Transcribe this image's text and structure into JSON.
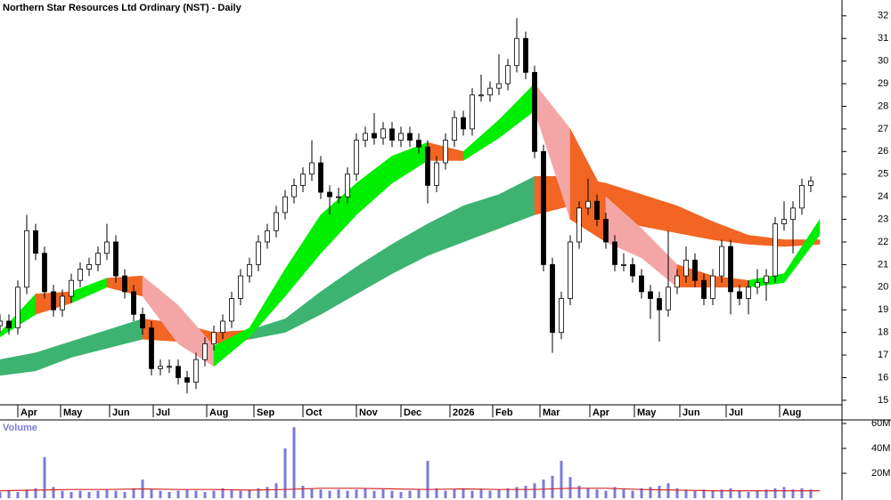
{
  "chart_data": [
    {
      "type": "candlestick",
      "title": "Northern Star Resources Ltd Ordinary (NST) - Daily",
      "x": [
        0,
        4,
        8,
        12,
        16,
        20,
        24,
        28,
        32,
        36,
        40,
        44,
        48,
        52,
        56,
        60,
        64,
        68,
        72,
        76,
        80,
        84,
        88,
        92,
        96,
        100,
        104,
        108,
        112,
        116,
        120,
        124,
        128,
        132,
        136,
        140,
        144,
        148,
        152,
        156,
        160,
        164,
        168,
        172,
        176,
        180,
        184,
        188,
        192,
        196,
        200,
        204,
        208,
        212,
        216,
        220,
        224,
        228,
        232,
        236,
        240,
        244,
        248,
        252,
        256,
        260,
        264,
        268,
        272,
        276,
        280,
        284,
        288,
        292,
        296,
        300,
        304,
        308,
        312,
        316,
        320,
        324,
        328,
        332,
        336,
        340,
        344,
        348,
        352,
        356,
        360,
        364
      ],
      "open": [
        18.3,
        18.5,
        18.2,
        20,
        22.5,
        21.5,
        19.8,
        19,
        19.6,
        20.3,
        20.8,
        21,
        21.5,
        22,
        20.5,
        19.8,
        18.8,
        18.2,
        16.4,
        16.5,
        16.5,
        16,
        15.8,
        16.8,
        17.5,
        18,
        18.5,
        19.5,
        20.5,
        21,
        22,
        22.5,
        23.3,
        24,
        24.5,
        25,
        25.5,
        24.2,
        24,
        24,
        25,
        26.5,
        26.8,
        26.6,
        27,
        26.5,
        26.8,
        26.5,
        26.2,
        24.5,
        25.5,
        26.5,
        27.5,
        27,
        28.5,
        28.5,
        28.8,
        29,
        29.8,
        31,
        29.5,
        26,
        21,
        18,
        19.5,
        22,
        23.5,
        23.8,
        23,
        22,
        21,
        21,
        20.5,
        19.8,
        19.5,
        19,
        20,
        20.5,
        21.2,
        20.3,
        19.5,
        20.5,
        21.8,
        19.8,
        19.5,
        20,
        20.2,
        20.5,
        22.8,
        23,
        23.5,
        24.5
      ],
      "high": [
        18.8,
        18.8,
        20.3,
        23.2,
        22.8,
        21.8,
        20.1,
        19.9,
        20.6,
        21.1,
        21.3,
        21.8,
        22.8,
        22.3,
        20.8,
        20.1,
        19.1,
        18.5,
        16.8,
        16.8,
        16.8,
        16.3,
        17.1,
        17.8,
        18.3,
        18.8,
        19.8,
        20.8,
        21.3,
        22.3,
        22.8,
        23.6,
        24.3,
        24.8,
        25.3,
        26.5,
        25.8,
        24.5,
        24.4,
        25.3,
        26.8,
        27.1,
        27.7,
        27.3,
        27.3,
        27.1,
        27.1,
        26.8,
        26.5,
        25.8,
        26.8,
        27.8,
        27.8,
        28.8,
        29.4,
        29.1,
        30.3,
        30.1,
        31.9,
        31.3,
        29.8,
        26.3,
        21.3,
        19.8,
        22.3,
        23.8,
        24.8,
        24.1,
        23.3,
        22.3,
        21.5,
        21.3,
        20.8,
        20.1,
        19.8,
        22.5,
        20.8,
        21.8,
        21.5,
        20.6,
        20.8,
        22.1,
        22.1,
        20.1,
        20.3,
        20.8,
        20.8,
        23.1,
        23.8,
        23.8,
        24.8,
        24.9
      ],
      "low": [
        18.0,
        17.9,
        17.9,
        19.7,
        21.2,
        19.5,
        18.7,
        18.7,
        19.3,
        20,
        20.5,
        20.7,
        21.2,
        20.2,
        19.5,
        18.5,
        17.9,
        16.1,
        16.1,
        16.2,
        15.7,
        15.3,
        15.5,
        16.5,
        17.2,
        17.7,
        18.2,
        19.2,
        20.2,
        20.7,
        21.7,
        22.2,
        23,
        23.7,
        24.2,
        24.7,
        23.9,
        23.2,
        23.7,
        23.7,
        24.7,
        26.2,
        26.3,
        26.3,
        26.2,
        26.2,
        26.2,
        25.9,
        23.7,
        24.2,
        25.2,
        26.2,
        26.7,
        26.7,
        28.2,
        28.2,
        28.5,
        28.7,
        29.5,
        29.2,
        25.7,
        20.7,
        17.1,
        17.7,
        19.2,
        21.7,
        23.2,
        22.7,
        21.7,
        20.7,
        20.7,
        20.2,
        19.5,
        18.6,
        17.6,
        18.7,
        19.7,
        20.2,
        20,
        19.2,
        19.2,
        20.2,
        18.8,
        19.2,
        18.8,
        19.7,
        19.4,
        20.2,
        22.5,
        21.5,
        23.2,
        24.2
      ],
      "close": [
        18.5,
        18.2,
        20,
        22.5,
        21.5,
        19.8,
        19,
        19.6,
        20.3,
        20.8,
        21,
        21.5,
        22,
        20.5,
        19.8,
        18.8,
        18.2,
        16.4,
        16.5,
        16.5,
        16,
        15.8,
        16.8,
        17.5,
        18,
        18.5,
        19.5,
        20.5,
        21,
        22,
        22.5,
        23.3,
        24,
        24.5,
        25,
        25.5,
        24.2,
        24,
        24,
        25,
        26.5,
        26.8,
        26.6,
        27,
        26.5,
        26.8,
        26.5,
        26.2,
        24.5,
        25.5,
        26.5,
        27.5,
        27,
        28.5,
        28.5,
        28.8,
        29,
        29.8,
        31,
        29.5,
        26,
        21,
        18,
        19.5,
        22,
        23.5,
        23.8,
        23,
        22,
        21,
        21,
        20.5,
        19.8,
        19.5,
        19,
        20,
        20.5,
        21.2,
        20.3,
        19.5,
        20.5,
        21.8,
        19.8,
        19.5,
        20,
        20.2,
        20.5,
        22.8,
        23,
        23.5,
        24.5,
        24.7
      ],
      "ribbons": [
        {
          "x": [
            0,
            16,
            32,
            48,
            64,
            80,
            96,
            112,
            128,
            144,
            160,
            176,
            192,
            208,
            224,
            240,
            256,
            272,
            288,
            304,
            320,
            336,
            352,
            368
          ],
          "upper": [
            16.8,
            17.1,
            17.6,
            18.1,
            18.6,
            18.4,
            18.0,
            18.1,
            18.6,
            19.8,
            20.9,
            21.9,
            22.8,
            23.6,
            24.1,
            24.9,
            24.9,
            24.6,
            24.1,
            23.6,
            22.9,
            22.3,
            22.1,
            22.1
          ],
          "lower": [
            16.1,
            16.3,
            16.9,
            17.3,
            17.7,
            17.6,
            17.5,
            17.7,
            18.0,
            18.8,
            19.7,
            20.6,
            21.4,
            22.0,
            22.6,
            23.2,
            23.6,
            23.2,
            22.7,
            22.4,
            22.1,
            21.9,
            21.8,
            21.9
          ],
          "colors": [
            "#3cb371",
            "#3cb371",
            "#3cb371",
            "#3cb371",
            "#3cb371",
            "#f26522",
            "#f26522",
            "#f26522",
            "#3cb371",
            "#3cb371",
            "#3cb371",
            "#3cb371",
            "#3cb371",
            "#3cb371",
            "#3cb371",
            "#3cb371",
            "#f26522",
            "#f26522",
            "#f26522",
            "#f26522",
            "#f26522",
            "#f26522",
            "#f26522",
            "#f26522"
          ]
        },
        {
          "x": [
            0,
            16,
            32,
            48,
            64,
            80,
            96,
            112,
            128,
            144,
            160,
            176,
            192,
            208,
            224,
            240,
            256,
            272,
            288,
            304,
            320,
            336,
            352,
            368
          ],
          "upper": [
            18.0,
            19.7,
            19.8,
            20.4,
            20.5,
            19.2,
            17.4,
            18.2,
            20.8,
            23.2,
            24.6,
            25.8,
            26.4,
            26.0,
            27.4,
            29.0,
            27.0,
            24.0,
            22.6,
            21.0,
            20.5,
            20.3,
            20.6,
            23.0
          ],
          "lower": [
            17.8,
            18.8,
            19.3,
            20.0,
            19.6,
            17.5,
            16.5,
            17.8,
            19.6,
            21.5,
            23.2,
            24.6,
            25.6,
            25.6,
            26.6,
            27.8,
            23.0,
            22.0,
            21.3,
            20.0,
            20.0,
            20.0,
            20.2,
            22.3
          ],
          "colors": [
            "#00ee00",
            "#00ee00",
            "#f26522",
            "#00ee00",
            "#f26522",
            "#f4a6a6",
            "#f4a6a6",
            "#00ee00",
            "#00ee00",
            "#00ee00",
            "#00ee00",
            "#00ee00",
            "#00ee00",
            "#f26522",
            "#00ee00",
            "#00ee00",
            "#f4a6a6",
            "#f26522",
            "#f4a6a6",
            "#f4a6a6",
            "#f26522",
            "#f26522",
            "#00ee00",
            "#00ee00"
          ]
        }
      ],
      "xlim": [
        0,
        378
      ],
      "xticks": [
        {
          "value": 8,
          "label": "Apr"
        },
        {
          "value": 27.2,
          "label": "May"
        },
        {
          "value": 49.2,
          "label": "Jun"
        },
        {
          "value": 68.8,
          "label": "Jul"
        },
        {
          "value": 92.8,
          "label": "Aug"
        },
        {
          "value": 114,
          "label": "Sep"
        },
        {
          "value": 136,
          "label": "Oct"
        },
        {
          "value": 160,
          "label": "Nov"
        },
        {
          "value": 180,
          "label": "Dec"
        },
        {
          "value": 202,
          "label": "2026"
        },
        {
          "value": 221.2,
          "label": "Feb"
        },
        {
          "value": 242.4,
          "label": "Mar"
        },
        {
          "value": 264.8,
          "label": "Apr"
        },
        {
          "value": 284.8,
          "label": "May"
        },
        {
          "value": 305.2,
          "label": "Jun"
        },
        {
          "value": 326,
          "label": "Jul"
        },
        {
          "value": 350,
          "label": "Aug"
        }
      ],
      "ylim": [
        14.8,
        32.7
      ],
      "yticks": [
        15,
        16,
        17,
        18,
        19,
        20,
        21,
        22,
        23,
        24,
        25,
        26,
        27,
        28,
        29,
        30,
        31,
        32
      ]
    },
    {
      "type": "bar",
      "title": "Volume",
      "x": [
        0,
        4,
        8,
        12,
        16,
        20,
        24,
        28,
        32,
        36,
        40,
        44,
        48,
        52,
        56,
        60,
        64,
        68,
        72,
        76,
        80,
        84,
        88,
        92,
        96,
        100,
        104,
        108,
        112,
        116,
        120,
        124,
        128,
        132,
        136,
        140,
        144,
        148,
        152,
        156,
        160,
        164,
        168,
        172,
        176,
        180,
        184,
        188,
        192,
        196,
        200,
        204,
        208,
        212,
        216,
        220,
        224,
        228,
        232,
        236,
        240,
        244,
        248,
        252,
        256,
        260,
        264,
        268,
        272,
        276,
        280,
        284,
        288,
        292,
        296,
        300,
        304,
        308,
        312,
        316,
        320,
        324,
        328,
        332,
        336,
        340,
        344,
        348,
        352,
        356,
        360,
        364
      ],
      "values": [
        5,
        6,
        5,
        7,
        8,
        33,
        9,
        6,
        5,
        6,
        5,
        6,
        7,
        6,
        5,
        8,
        15,
        7,
        6,
        5,
        6,
        7,
        6,
        5,
        6,
        8,
        7,
        6,
        7,
        8,
        9,
        12,
        40,
        57,
        10,
        8,
        7,
        6,
        7,
        6,
        7,
        8,
        6,
        7,
        6,
        5,
        6,
        7,
        30,
        8,
        6,
        7,
        8,
        6,
        7,
        6,
        7,
        8,
        9,
        10,
        12,
        15,
        18,
        30,
        17,
        10,
        8,
        7,
        6,
        9,
        7,
        6,
        8,
        9,
        10,
        12,
        8,
        7,
        6,
        7,
        6,
        7,
        8,
        6,
        5,
        6,
        7,
        8,
        9,
        7,
        8,
        7
      ],
      "color": "#7b7bd8",
      "average": {
        "color": "#d62728",
        "x": [
          0,
          16,
          32,
          48,
          64,
          80,
          96,
          112,
          128,
          144,
          160,
          176,
          192,
          208,
          224,
          240,
          256,
          272,
          288,
          304,
          320,
          336,
          352,
          368
        ],
        "values": [
          6,
          6.5,
          7,
          7,
          7.5,
          7,
          7,
          6.5,
          7,
          8,
          8,
          7.5,
          7,
          7.5,
          7,
          7,
          8,
          8,
          7,
          6.5,
          6,
          6,
          6,
          6
        ]
      },
      "xlim": [
        0,
        378
      ],
      "ylim": [
        0,
        60
      ],
      "yticks": [
        {
          "value": 20,
          "label": "20M"
        },
        {
          "value": 40,
          "label": "40M"
        },
        {
          "value": 60,
          "label": "60M"
        }
      ]
    }
  ]
}
